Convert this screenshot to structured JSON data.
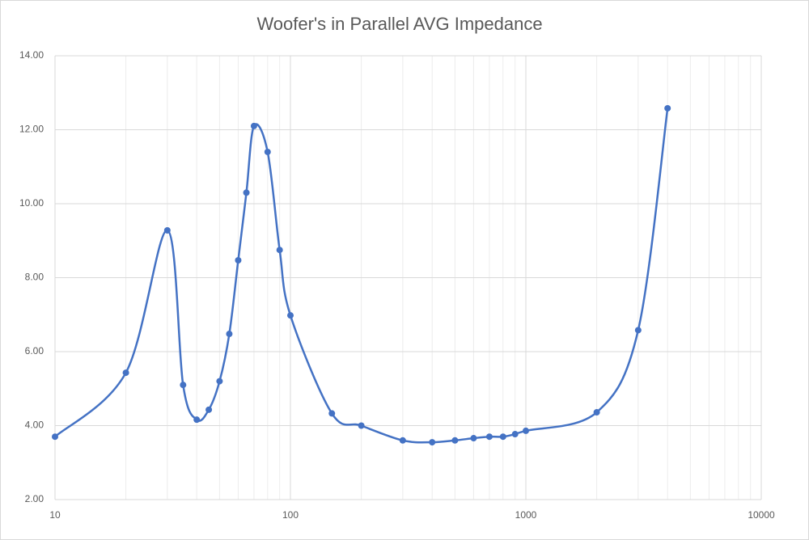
{
  "chart_data": {
    "type": "scatter",
    "title": "Woofer's in Parallel AVG Impedance",
    "xscale": "log",
    "xlim": [
      10,
      10000
    ],
    "ylim": [
      2,
      14
    ],
    "xticks": [
      10,
      100,
      1000,
      10000
    ],
    "yticks": [
      {
        "value": 2,
        "label": "2.00"
      },
      {
        "value": 4,
        "label": "4.00"
      },
      {
        "value": 6,
        "label": "6.00"
      },
      {
        "value": 8,
        "label": "8.00"
      },
      {
        "value": 10,
        "label": "10.00"
      },
      {
        "value": 12,
        "label": "12.00"
      },
      {
        "value": 14,
        "label": "14.00"
      }
    ],
    "grid": true,
    "minor_grid": true,
    "smooth": true,
    "series": [
      {
        "color": "#4472c4",
        "x": [
          10,
          20,
          30,
          35,
          40,
          45,
          50,
          55,
          60,
          65,
          70,
          80,
          90,
          100,
          150,
          200,
          300,
          400,
          500,
          600,
          700,
          800,
          900,
          1000,
          2000,
          3000,
          4000
        ],
        "values": [
          3.7,
          5.43,
          9.28,
          5.1,
          4.16,
          4.43,
          5.2,
          6.48,
          8.47,
          10.3,
          12.1,
          11.4,
          8.75,
          6.98,
          4.33,
          4.0,
          3.6,
          3.55,
          3.6,
          3.66,
          3.7,
          3.7,
          3.77,
          3.86,
          4.36,
          6.58,
          12.58
        ]
      }
    ]
  }
}
